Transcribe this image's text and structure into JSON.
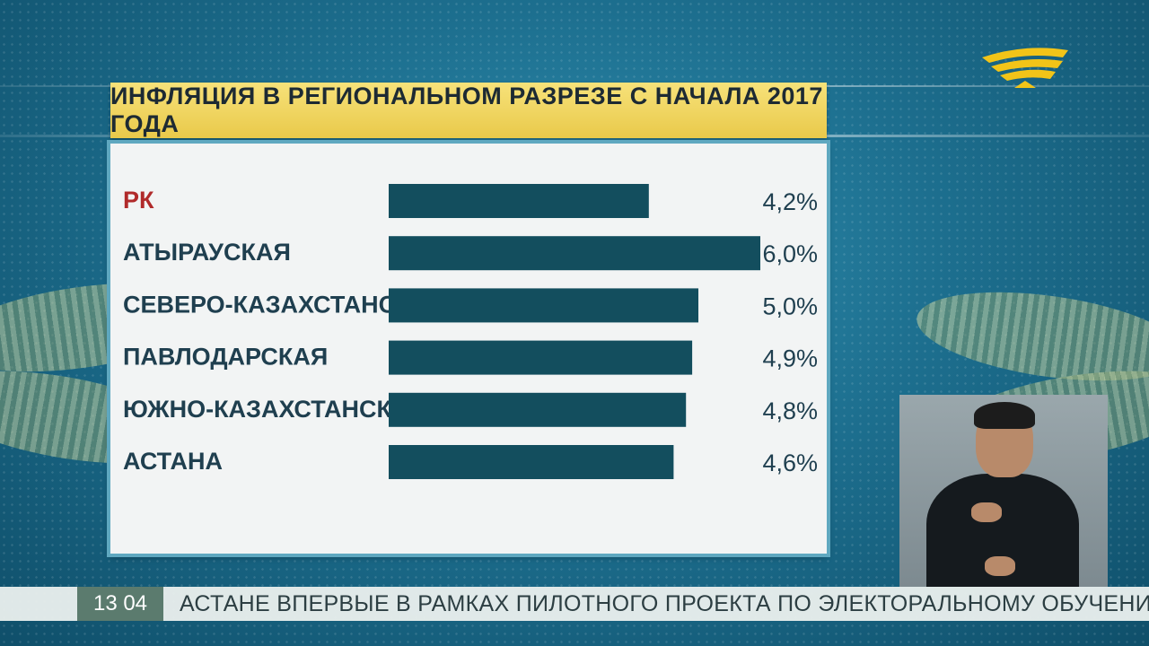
{
  "title": "ИНФЛЯЦИЯ В РЕГИОНАЛЬНОМ РАЗРЕЗЕ С НАЧАЛА 2017 ГОДА",
  "chart_data": {
    "type": "bar",
    "orientation": "horizontal",
    "title": "ИНФЛЯЦИЯ В РЕГИОНАЛЬНОМ РАЗРЕЗЕ С НАЧАЛА 2017 ГОДА",
    "categories": [
      "РК",
      "АТЫРАУСКАЯ",
      "СЕВЕРО-КАЗАХСТАНСКАЯ",
      "ПАВЛОДАРСКАЯ",
      "ЮЖНО-КАЗАХСТАНСКАЯ",
      "АСТАНА"
    ],
    "values": [
      4.2,
      6.0,
      5.0,
      4.9,
      4.8,
      4.6
    ],
    "value_labels": [
      "4,2%",
      "6,0%",
      "5,0%",
      "4,9%",
      "4,8%",
      "4,6%"
    ],
    "highlight_category": "РК",
    "colors": {
      "bar": "#134e5e",
      "highlight_label": "#b02a2a",
      "label": "#1f3f4f"
    }
  },
  "ticker": {
    "time": "13 04",
    "text": "АСТАНЕ ВПЕРВЫЕ В РАМКАХ ПИЛОТНОГО ПРОЕКТА ПО ЭЛЕКТОРАЛЬНОМУ ОБУЧЕНИЮ ЦИК"
  }
}
